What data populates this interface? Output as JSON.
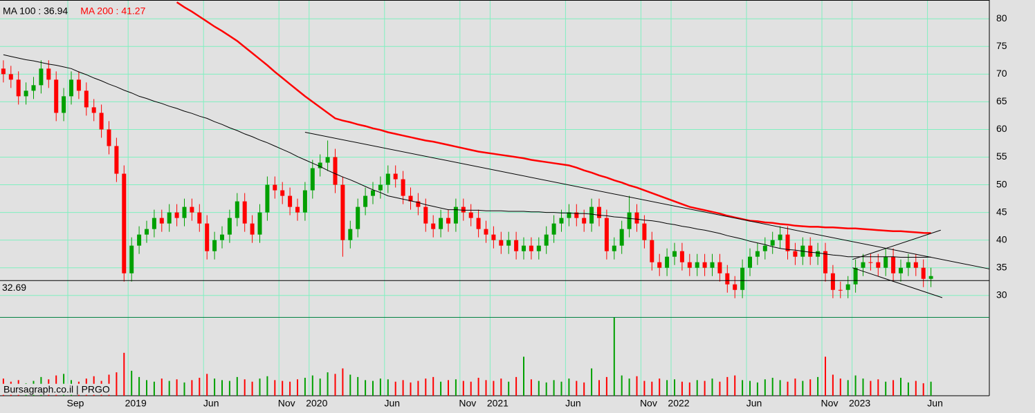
{
  "chart_data": {
    "type": "candlestick",
    "source": "Bursagraph.co.il | PRGO",
    "categories": [
      null,
      null,
      null,
      null,
      null,
      null,
      null,
      null,
      null,
      "Sep",
      null,
      null,
      null,
      null,
      null,
      null,
      null,
      "2019",
      null,
      null,
      null,
      null,
      null,
      null,
      null,
      null,
      null,
      "Jun",
      null,
      null,
      null,
      null,
      null,
      null,
      null,
      null,
      null,
      "Nov",
      null,
      null,
      null,
      "2020",
      null,
      null,
      null,
      null,
      null,
      null,
      null,
      null,
      null,
      "Jun",
      null,
      null,
      null,
      null,
      null,
      null,
      null,
      null,
      null,
      "Nov",
      null,
      null,
      null,
      "2021",
      null,
      null,
      null,
      null,
      null,
      null,
      null,
      null,
      null,
      "Jun",
      null,
      null,
      null,
      null,
      null,
      null,
      null,
      null,
      null,
      "Nov",
      null,
      null,
      null,
      "2022",
      null,
      null,
      null,
      null,
      null,
      null,
      null,
      null,
      null,
      "Jun",
      null,
      null,
      null,
      null,
      null,
      null,
      null,
      null,
      null,
      "Nov",
      null,
      null,
      null,
      "2023",
      null,
      null,
      null,
      null,
      null,
      null,
      null,
      null,
      null,
      "Jun"
    ],
    "open": [
      71,
      70,
      69,
      66,
      67,
      68,
      71,
      69,
      63,
      66,
      69,
      67,
      64,
      63,
      60,
      57,
      52,
      34,
      39,
      41,
      42,
      44,
      43,
      45,
      44,
      46,
      45,
      43,
      38,
      40,
      41,
      44,
      47,
      43,
      41,
      45,
      50,
      49,
      48,
      46,
      45,
      49,
      53,
      54,
      55,
      50,
      40,
      42,
      46,
      48,
      49,
      50,
      52,
      51,
      48,
      47,
      46,
      43,
      42,
      44,
      43,
      46,
      45,
      44,
      42,
      41,
      40,
      39,
      40,
      38,
      39,
      38,
      39,
      41,
      43,
      44,
      45,
      44,
      43,
      46,
      44,
      38,
      39,
      42,
      45,
      43,
      40,
      36,
      35,
      37,
      38,
      36,
      35,
      36,
      35,
      36,
      34,
      32,
      31,
      35,
      37,
      38,
      39,
      40,
      41,
      38,
      37,
      39,
      37,
      38,
      34,
      31,
      31,
      32,
      35,
      36,
      36,
      35,
      37,
      34,
      35,
      36,
      35,
      33
    ],
    "high": [
      72.5,
      71.5,
      70.5,
      68.5,
      69.5,
      72.5,
      72.5,
      70.5,
      67.5,
      70.5,
      70.5,
      68.5,
      65.5,
      64.5,
      61.5,
      58.5,
      53.5,
      40.5,
      42.5,
      43.5,
      45.5,
      45.5,
      46.5,
      46.5,
      47.5,
      47.5,
      46.5,
      44.5,
      41.5,
      42.5,
      45.5,
      48.5,
      48.5,
      44.5,
      46.5,
      51.5,
      51.5,
      50.5,
      49.5,
      47.5,
      50.5,
      54.5,
      55.5,
      58,
      56.5,
      51.5,
      43.5,
      47.5,
      49.5,
      50.5,
      51.5,
      53.5,
      53.5,
      52.5,
      49.5,
      48.5,
      47.5,
      44.5,
      45.5,
      45.5,
      47.5,
      47.5,
      46.5,
      45.5,
      43.5,
      42.5,
      41.5,
      41.5,
      41.5,
      40.5,
      40.5,
      40.5,
      42.5,
      44.5,
      45.5,
      46.5,
      46.5,
      45.5,
      47.5,
      47.5,
      45.5,
      40.5,
      43.5,
      48,
      46.5,
      44.5,
      41.5,
      37.5,
      38.5,
      39.5,
      39.5,
      37.5,
      37.5,
      37.5,
      37.5,
      37.5,
      35.5,
      33.5,
      36.5,
      38.5,
      39.5,
      40.5,
      41.5,
      42.5,
      42.5,
      39.5,
      40.5,
      40.5,
      39.5,
      39.5,
      35.5,
      32.5,
      33.5,
      36.5,
      37.5,
      37.5,
      37.5,
      38.5,
      38.5,
      36.5,
      37.5,
      37.5,
      36.5,
      35
    ],
    "low": [
      68.5,
      67.5,
      64.5,
      64.5,
      65.5,
      66.5,
      67.5,
      61.5,
      61.5,
      64.5,
      65.5,
      62.5,
      61.5,
      58.5,
      55.5,
      50.5,
      32.5,
      32.5,
      37.5,
      39.5,
      40.5,
      41.5,
      41.5,
      42.5,
      42.5,
      43.5,
      41.5,
      36.5,
      36.5,
      38.5,
      39.5,
      42.5,
      41.5,
      39.5,
      39.5,
      43.5,
      47.5,
      46.5,
      44.5,
      43.5,
      43.5,
      47.5,
      51.5,
      52.5,
      48.5,
      37,
      38.5,
      40.5,
      44.5,
      46.5,
      47.5,
      48.5,
      49.5,
      46.5,
      45.5,
      44.5,
      41.5,
      40.5,
      40.5,
      41.5,
      41.5,
      43.5,
      42.5,
      40.5,
      39.5,
      38.5,
      37.5,
      37.5,
      36.5,
      36.5,
      36.5,
      36.5,
      37.5,
      39.5,
      41.5,
      42.5,
      42.5,
      41.5,
      41.5,
      42.5,
      36.5,
      36.5,
      37.5,
      40.5,
      41.5,
      38.5,
      34.5,
      33.5,
      33.5,
      35.5,
      34.5,
      33.5,
      33.5,
      33.5,
      33.5,
      32.5,
      30.5,
      29.5,
      29.5,
      33.5,
      35.5,
      36.5,
      37.5,
      38.5,
      36.5,
      35.5,
      35.5,
      35.5,
      35.5,
      32.5,
      29.5,
      29.5,
      29.5,
      30.5,
      33.5,
      34.5,
      33.5,
      33.5,
      32.5,
      32.5,
      33.5,
      33.5,
      31.5,
      31.5
    ],
    "close": [
      70,
      69,
      66,
      67,
      68,
      71,
      69,
      63,
      66,
      69,
      67,
      64,
      63,
      60,
      57,
      52,
      34,
      39,
      41,
      42,
      44,
      43,
      45,
      44,
      46,
      45,
      43,
      38,
      40,
      41,
      44,
      47,
      43,
      41,
      45,
      50,
      49,
      48,
      46,
      45,
      49,
      53,
      54,
      55,
      50,
      40,
      42,
      46,
      48,
      49,
      50,
      52,
      51,
      48,
      47,
      46,
      43,
      42,
      44,
      43,
      46,
      45,
      44,
      42,
      41,
      40,
      39,
      40,
      38,
      39,
      38,
      39,
      41,
      43,
      44,
      45,
      44,
      43,
      46,
      44,
      38,
      39,
      42,
      45,
      43,
      40,
      36,
      35,
      37,
      38,
      36,
      35,
      36,
      35,
      36,
      34,
      32,
      31,
      35,
      37,
      38,
      39,
      40,
      41,
      38,
      37,
      39,
      37,
      38,
      34,
      31,
      31,
      32,
      35,
      36,
      36,
      35,
      37,
      34,
      35,
      36,
      35,
      33,
      33.5
    ],
    "up_color": "#00a000",
    "down_color": "#ff0000",
    "volume": [
      22,
      18,
      20,
      16,
      19,
      24,
      21,
      26,
      28,
      20,
      18,
      22,
      25,
      19,
      27,
      30,
      55,
      32,
      24,
      20,
      18,
      22,
      19,
      21,
      17,
      20,
      23,
      28,
      22,
      20,
      19,
      24,
      21,
      18,
      22,
      25,
      20,
      19,
      18,
      21,
      23,
      26,
      22,
      30,
      28,
      35,
      27,
      24,
      20,
      19,
      22,
      21,
      18,
      20,
      17,
      19,
      22,
      24,
      18,
      20,
      21,
      19,
      18,
      23,
      20,
      19,
      22,
      18,
      24,
      50,
      21,
      19,
      17,
      20,
      18,
      22,
      19,
      17,
      35,
      20,
      24,
      100,
      26,
      22,
      25,
      19,
      18,
      22,
      20,
      21,
      18,
      17,
      20,
      19,
      22,
      18,
      24,
      26,
      20,
      19,
      17,
      21,
      23,
      20,
      18,
      22,
      19,
      21,
      24,
      50,
      27,
      22,
      20,
      26,
      22,
      19,
      21,
      18,
      20,
      23,
      17,
      19,
      16,
      18
    ],
    "volume_ylim": [
      0,
      100
    ],
    "ylim": [
      26.1,
      83.4
    ],
    "yticks": [
      30,
      35,
      40,
      45,
      50,
      55,
      60,
      65,
      70,
      75,
      80
    ],
    "grid": true,
    "series": [
      {
        "name": "MA 100 : 36.94",
        "color": "#000000",
        "values": [
          73.5,
          73.2,
          72.9,
          72.6,
          72.4,
          72.1,
          71.8,
          71.6,
          71.3,
          71.0,
          70.4,
          69.9,
          69.3,
          68.8,
          68.2,
          67.7,
          67.1,
          66.6,
          66.0,
          65.6,
          65.1,
          64.7,
          64.2,
          63.8,
          63.3,
          62.9,
          62.4,
          62.0,
          61.4,
          60.9,
          60.3,
          59.8,
          59.2,
          58.7,
          58.1,
          57.6,
          57.0,
          56.4,
          55.8,
          55.1,
          54.5,
          53.9,
          53.3,
          52.6,
          52.0,
          51.4,
          50.9,
          50.3,
          49.7,
          49.1,
          48.6,
          48.0,
          47.7,
          47.4,
          47.1,
          46.8,
          46.4,
          46.1,
          45.8,
          45.5,
          45.5,
          45.4,
          45.4,
          45.4,
          45.3,
          45.3,
          45.3,
          45.2,
          45.2,
          45.2,
          45.1,
          45.1,
          45.0,
          45.0,
          44.9,
          44.9,
          44.8,
          44.8,
          44.7,
          44.5,
          44.4,
          44.2,
          44.1,
          43.9,
          43.8,
          43.6,
          43.5,
          43.3,
          43.0,
          42.8,
          42.5,
          42.3,
          42.0,
          41.8,
          41.5,
          41.2,
          40.8,
          40.5,
          40.2,
          39.8,
          39.5,
          39.2,
          38.8,
          38.5,
          38.3,
          38.2,
          38.0,
          37.8,
          37.7,
          37.5,
          37.3,
          37.2,
          37.0,
          37.0,
          37.0,
          37.0,
          37.0,
          37.0,
          37.0,
          36.9,
          36.9,
          36.9,
          36.9,
          36.94
        ]
      },
      {
        "name": "MA 200 : 41.27",
        "color": "#ff0000",
        "values": [
          null,
          null,
          null,
          null,
          null,
          null,
          null,
          null,
          null,
          null,
          null,
          null,
          null,
          null,
          null,
          null,
          null,
          null,
          null,
          null,
          null,
          null,
          null,
          83,
          82.1,
          81.3,
          80.4,
          79.5,
          78.6,
          77.8,
          76.9,
          76.0,
          74.9,
          73.8,
          72.7,
          71.6,
          70.4,
          69.3,
          68.2,
          67.1,
          66.0,
          65,
          64,
          63,
          62,
          61.6,
          61.3,
          60.9,
          60.6,
          60.2,
          59.9,
          59.5,
          59.2,
          58.9,
          58.6,
          58.3,
          58.0,
          57.8,
          57.5,
          57.2,
          56.9,
          56.6,
          56.3,
          56.0,
          55.8,
          55.6,
          55.4,
          55.2,
          55.0,
          54.8,
          54.5,
          54.3,
          54.1,
          53.9,
          53.7,
          53.5,
          53.1,
          52.6,
          52.2,
          51.7,
          51.3,
          50.8,
          50.4,
          49.9,
          49.5,
          49.0,
          48.5,
          48.0,
          47.5,
          47.0,
          46.5,
          46.0,
          45.7,
          45.4,
          45.1,
          44.8,
          44.4,
          44.1,
          43.8,
          43.5,
          43.4,
          43.2,
          43.1,
          42.9,
          42.8,
          42.6,
          42.5,
          42.4,
          42.4,
          42.3,
          42.3,
          42.2,
          42.1,
          42.1,
          42.0,
          41.9,
          41.8,
          41.7,
          41.6,
          41.6,
          41.5,
          41.4,
          41.3,
          41.27
        ]
      }
    ],
    "hlines": [
      32.69
    ],
    "trendlines": [
      {
        "x": [
          40,
          130.7
        ],
        "y": [
          59.5,
          34.8
        ]
      },
      {
        "x": [
          112.6,
          124.3
        ],
        "y": [
          36.5,
          41.8
        ]
      },
      {
        "x": [
          112.6,
          124.5
        ],
        "y": [
          35,
          29.6
        ]
      }
    ]
  }
}
